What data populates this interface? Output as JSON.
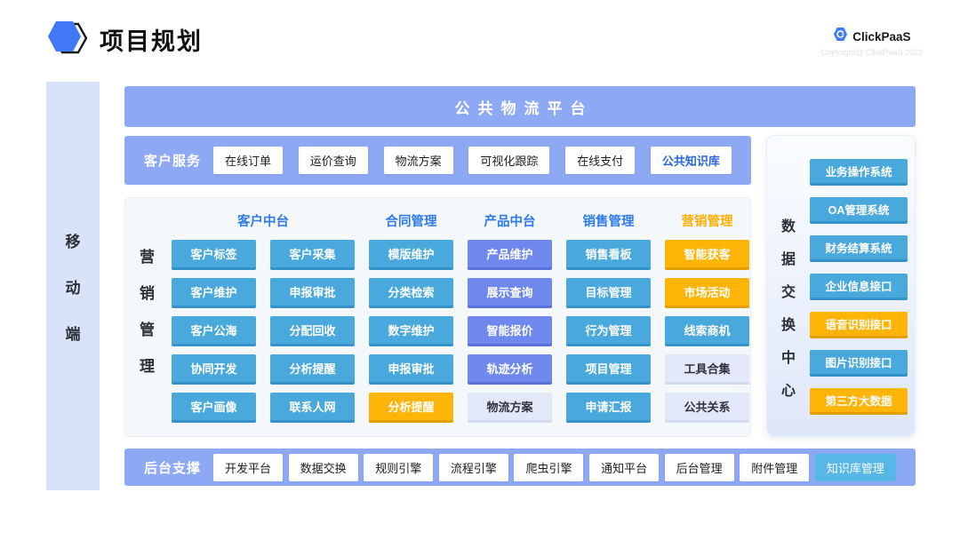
{
  "colors": {
    "band": "#8EA9F4",
    "sky": "#49A8DC",
    "sky_dark": "#3492C8",
    "periwinkle": "#6F88EE",
    "periwinkle_dark": "#5A70DC",
    "orange": "#FFB408",
    "orange_dark": "#E39E00",
    "lavender": "#E2E8F8",
    "lavender_dark": "#D2DAF0",
    "sky_button": "#57B7E8",
    "header_blue": "#2F7BE8",
    "header_orange": "#FFAE00",
    "rail_bg": "#D8E2F9",
    "panel_bg": "#F5F8FB",
    "link_blue": "#2566DF",
    "logo_blue": "#4277F5"
  },
  "header": {
    "title": "项目规划",
    "brand": "ClickPaaS",
    "copyright": "Copyright@ ClickPaaS 2022"
  },
  "left_rail": {
    "label": "移动端"
  },
  "top_banner": {
    "label": "公共物流平台"
  },
  "customer_service": {
    "label": "客户服务",
    "items": [
      {
        "label": "在线订单",
        "style": "white"
      },
      {
        "label": "运价查询",
        "style": "white"
      },
      {
        "label": "物流方案",
        "style": "white"
      },
      {
        "label": "可视化跟踪",
        "style": "white"
      },
      {
        "label": "在线支付",
        "style": "white"
      },
      {
        "label": "公共知识库",
        "style": "white-blue"
      }
    ]
  },
  "main_grid": {
    "side_label": "营销管理",
    "headers": [
      {
        "label": "客户中台",
        "span": 2,
        "style": "blue"
      },
      {
        "label": "合同管理",
        "span": 1,
        "style": "blue"
      },
      {
        "label": "产品中台",
        "span": 1,
        "style": "blue"
      },
      {
        "label": "销售管理",
        "span": 1,
        "style": "blue"
      },
      {
        "label": "营销管理",
        "span": 1,
        "style": "orange"
      }
    ],
    "columns": [
      {
        "cells": [
          {
            "label": "客户标签",
            "style": "sky"
          },
          {
            "label": "客户维护",
            "style": "sky"
          },
          {
            "label": "客户公海",
            "style": "sky"
          },
          {
            "label": "协同开发",
            "style": "sky"
          },
          {
            "label": "客户画像",
            "style": "sky"
          }
        ]
      },
      {
        "cells": [
          {
            "label": "客户采集",
            "style": "sky"
          },
          {
            "label": "申报审批",
            "style": "sky"
          },
          {
            "label": "分配回收",
            "style": "sky"
          },
          {
            "label": "分析提醒",
            "style": "sky"
          },
          {
            "label": "联系人网",
            "style": "sky"
          }
        ]
      },
      {
        "cells": [
          {
            "label": "模版维护",
            "style": "sky"
          },
          {
            "label": "分类检索",
            "style": "sky"
          },
          {
            "label": "数字维护",
            "style": "sky"
          },
          {
            "label": "申报审批",
            "style": "sky"
          },
          {
            "label": "分析提醒",
            "style": "orange"
          }
        ]
      },
      {
        "cells": [
          {
            "label": "产品维护",
            "style": "peri"
          },
          {
            "label": "展示查询",
            "style": "peri"
          },
          {
            "label": "智能报价",
            "style": "peri"
          },
          {
            "label": "轨迹分析",
            "style": "peri"
          },
          {
            "label": "物流方案",
            "style": "lavender"
          }
        ]
      },
      {
        "cells": [
          {
            "label": "销售看板",
            "style": "sky"
          },
          {
            "label": "目标管理",
            "style": "sky"
          },
          {
            "label": "行为管理",
            "style": "sky"
          },
          {
            "label": "项目管理",
            "style": "sky"
          },
          {
            "label": "申请汇报",
            "style": "sky"
          }
        ]
      },
      {
        "cells": [
          {
            "label": "智能获客",
            "style": "orange"
          },
          {
            "label": "市场活动",
            "style": "orange"
          },
          {
            "label": "线索商机",
            "style": "sky"
          },
          {
            "label": "工具合集",
            "style": "lavender"
          },
          {
            "label": "公共关系",
            "style": "lavender"
          }
        ]
      }
    ]
  },
  "right_panel": {
    "side_label": "数据交换中心",
    "items": [
      {
        "label": "业务操作系统",
        "style": "sky"
      },
      {
        "label": "OA管理系统",
        "style": "sky"
      },
      {
        "label": "财务结算系统",
        "style": "sky"
      },
      {
        "label": "企业信息接口",
        "style": "sky"
      },
      {
        "label": "语音识别接口",
        "style": "orange"
      },
      {
        "label": "图片识别接口",
        "style": "sky"
      },
      {
        "label": "第三方大数据",
        "style": "orange"
      }
    ]
  },
  "backend_support": {
    "label": "后台支撑",
    "items": [
      {
        "label": "开发平台",
        "style": "white"
      },
      {
        "label": "数据交换",
        "style": "white"
      },
      {
        "label": "规则引擎",
        "style": "white"
      },
      {
        "label": "流程引擎",
        "style": "white"
      },
      {
        "label": "爬虫引擎",
        "style": "white"
      },
      {
        "label": "通知平台",
        "style": "white"
      },
      {
        "label": "后台管理",
        "style": "white"
      },
      {
        "label": "附件管理",
        "style": "white"
      },
      {
        "label": "知识库管理",
        "style": "sky-solid"
      }
    ]
  }
}
